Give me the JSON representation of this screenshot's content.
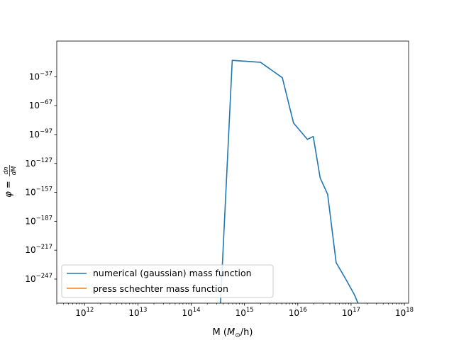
{
  "chart_data": {
    "type": "line",
    "title": "",
    "xlabel": "M (M_⊙/h)",
    "xlabel_parts": {
      "prefix": "M (",
      "symbol": "M",
      "subscript": "⊙",
      "suffix": "/h)"
    },
    "ylabel": "φ = dn/dM",
    "x_scale": "log",
    "y_scale": "log",
    "xlim": [
      300000000000.0,
      1.2e+18
    ],
    "ylim_exponent": [
      -272,
      0
    ],
    "x_ticks": [
      {
        "base": "10",
        "exp": "12",
        "value": 12
      },
      {
        "base": "10",
        "exp": "13",
        "value": 13
      },
      {
        "base": "10",
        "exp": "14",
        "value": 14
      },
      {
        "base": "10",
        "exp": "15",
        "value": 15
      },
      {
        "base": "10",
        "exp": "16",
        "value": 16
      },
      {
        "base": "10",
        "exp": "17",
        "value": 17
      },
      {
        "base": "10",
        "exp": "18",
        "value": 18
      }
    ],
    "y_ticks": [
      {
        "base": "10",
        "exp": "−37",
        "value": -37
      },
      {
        "base": "10",
        "exp": "−67",
        "value": -67
      },
      {
        "base": "10",
        "exp": "−97",
        "value": -97
      },
      {
        "base": "10",
        "exp": "−127",
        "value": -127
      },
      {
        "base": "10",
        "exp": "−157",
        "value": -157
      },
      {
        "base": "10",
        "exp": "−187",
        "value": -187
      },
      {
        "base": "10",
        "exp": "−217",
        "value": -217
      },
      {
        "base": "10",
        "exp": "−247",
        "value": -247
      }
    ],
    "grid": false,
    "legend_position": "lower-left",
    "series": [
      {
        "name": "numerical (gaussian) mass function",
        "color": "#1f77b4",
        "x_log10": [
          14.55,
          14.77,
          15.3,
          15.71,
          15.92,
          16.18,
          16.29,
          16.42,
          16.56,
          16.72,
          16.9,
          17.06,
          17.13
        ],
        "y_log10": [
          -272,
          -20,
          -22,
          -38,
          -85,
          -102,
          -99,
          -142,
          -159,
          -230,
          -247,
          -263,
          -272
        ]
      },
      {
        "name": "press schechter mass function",
        "color": "#ff7f0e",
        "x_log10": [],
        "y_log10": []
      }
    ]
  }
}
